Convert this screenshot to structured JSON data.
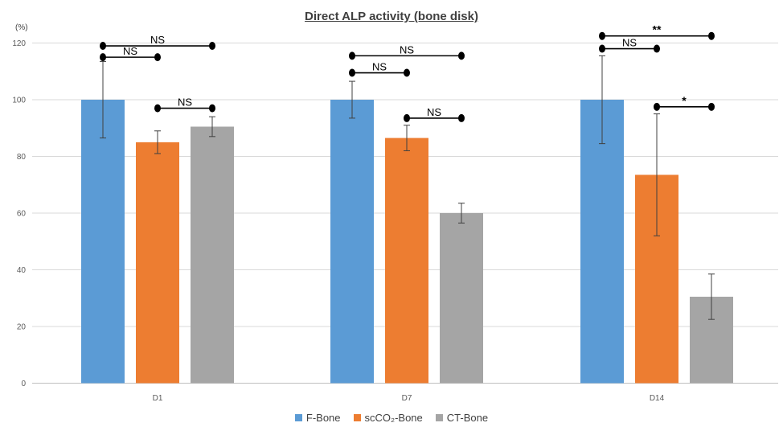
{
  "chart_data": {
    "type": "bar",
    "title": "Direct ALP activity (bone disk)",
    "ylabel": "(%)",
    "xlabel": "",
    "ylim": [
      0,
      120
    ],
    "yticks": [
      "0",
      "20",
      "40",
      "60",
      "80",
      "100",
      "120"
    ],
    "grid": true,
    "legend_position": "bottom",
    "categories": [
      "D1",
      "D7",
      "D14"
    ],
    "series": [
      {
        "name": "F-Bone",
        "color": "#5b9bd5",
        "values": [
          100,
          100,
          100
        ],
        "error": [
          13.5,
          6.5,
          15.5
        ]
      },
      {
        "name": "scCO₂-Bone",
        "color": "#ed7d31",
        "values": [
          85,
          86.5,
          73.5
        ],
        "error": [
          4,
          4.5,
          21.5
        ]
      },
      {
        "name": "CT-Bone",
        "color": "#a5a5a5",
        "values": [
          90.5,
          60,
          30.5
        ],
        "error": [
          3.5,
          3.5,
          8
        ]
      }
    ],
    "annotations": [
      {
        "category": "D1",
        "from": "F-Bone",
        "to": "CT-Bone",
        "label": "NS",
        "level": 119
      },
      {
        "category": "D1",
        "from": "F-Bone",
        "to": "scCO₂-Bone",
        "label": "NS",
        "level": 115
      },
      {
        "category": "D1",
        "from": "scCO₂-Bone",
        "to": "CT-Bone",
        "label": "NS",
        "level": 97
      },
      {
        "category": "D7",
        "from": "F-Bone",
        "to": "CT-Bone",
        "label": "NS",
        "level": 115.5
      },
      {
        "category": "D7",
        "from": "F-Bone",
        "to": "scCO₂-Bone",
        "label": "NS",
        "level": 109.5
      },
      {
        "category": "D7",
        "from": "scCO₂-Bone",
        "to": "CT-Bone",
        "label": "NS",
        "level": 93.5
      },
      {
        "category": "D14",
        "from": "F-Bone",
        "to": "CT-Bone",
        "label": "**",
        "level": 122.5
      },
      {
        "category": "D14",
        "from": "F-Bone",
        "to": "scCO₂-Bone",
        "label": "NS",
        "level": 118
      },
      {
        "category": "D14",
        "from": "scCO₂-Bone",
        "to": "CT-Bone",
        "label": "*",
        "level": 97.5
      }
    ]
  }
}
